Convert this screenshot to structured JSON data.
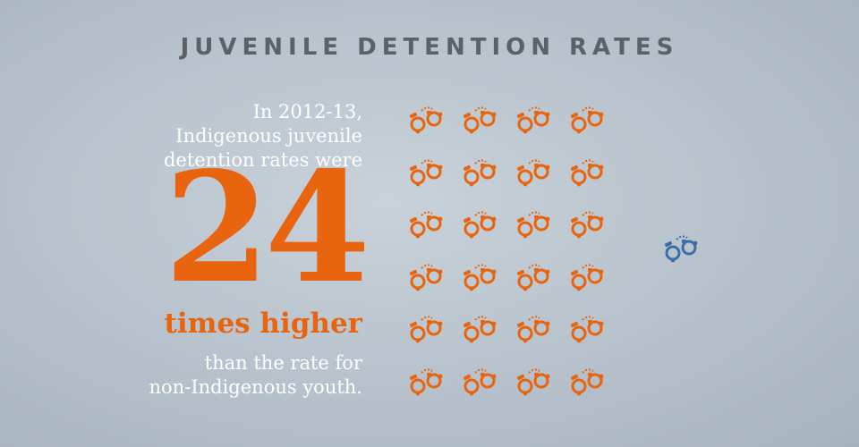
{
  "title": "JUVENILE DETENTION RATES",
  "intro_lines": [
    "In 2012-13,",
    "Indigenous juvenile",
    "detention rates were"
  ],
  "big_number": "24",
  "highlight": "times higher",
  "outro_lines": [
    "than the rate for",
    "non-Indigenous youth."
  ],
  "icons": {
    "indigenous_count": 24,
    "non_indigenous_count": 1,
    "icon_name": "handcuffs-icon",
    "indigenous_color": "#e8640f",
    "non_indigenous_color": "#3a6ea8"
  }
}
